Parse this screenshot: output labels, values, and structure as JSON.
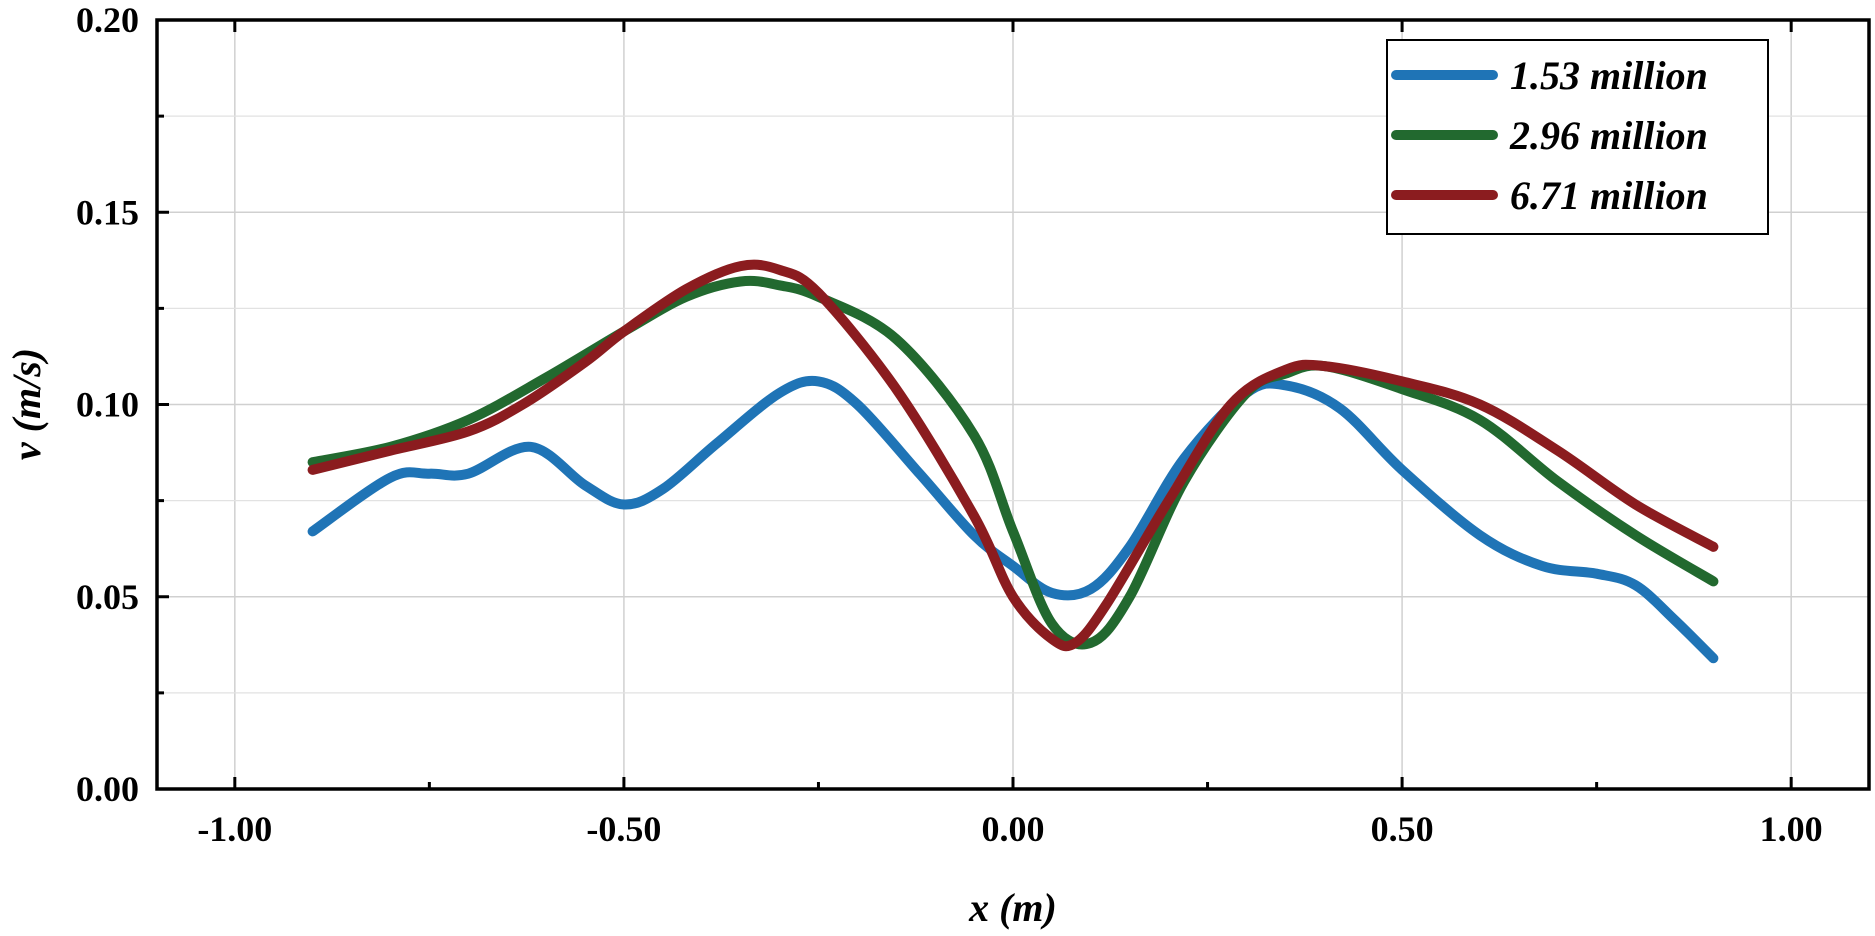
{
  "chart_data": {
    "type": "line",
    "title": "",
    "xlabel": "x (m)",
    "ylabel": "v (m/s)",
    "xlim": [
      -1.1,
      1.1
    ],
    "ylim": [
      0.0,
      0.2
    ],
    "xticks": [
      -1.0,
      -0.5,
      0.0,
      0.5,
      1.0
    ],
    "xtick_labels": [
      "-1.00",
      "-0.50",
      "0.00",
      "0.50",
      "1.00"
    ],
    "yticks": [
      0.0,
      0.05,
      0.1,
      0.15,
      0.2
    ],
    "ytick_labels": [
      "0.00",
      "0.05",
      "0.10",
      "0.15",
      "0.20"
    ],
    "grid": true,
    "legend_position": "top-right",
    "series": [
      {
        "name": "1.53 million",
        "color": "#1f74b6",
        "x": [
          -0.9,
          -0.8,
          -0.75,
          -0.7,
          -0.62,
          -0.55,
          -0.5,
          -0.45,
          -0.38,
          -0.3,
          -0.25,
          -0.2,
          -0.12,
          -0.05,
          0.0,
          0.05,
          0.1,
          0.15,
          0.22,
          0.3,
          0.35,
          0.42,
          0.5,
          0.6,
          0.68,
          0.75,
          0.8,
          0.85,
          0.9
        ],
        "values": [
          0.067,
          0.081,
          0.082,
          0.082,
          0.089,
          0.079,
          0.074,
          0.078,
          0.09,
          0.103,
          0.106,
          0.1,
          0.082,
          0.066,
          0.058,
          0.051,
          0.052,
          0.063,
          0.086,
          0.103,
          0.105,
          0.099,
          0.083,
          0.066,
          0.058,
          0.056,
          0.053,
          0.044,
          0.034
        ]
      },
      {
        "name": "2.96 million",
        "color": "#22692f",
        "x": [
          -0.9,
          -0.8,
          -0.7,
          -0.6,
          -0.5,
          -0.42,
          -0.35,
          -0.3,
          -0.25,
          -0.15,
          -0.05,
          0.0,
          0.05,
          0.1,
          0.15,
          0.22,
          0.3,
          0.35,
          0.4,
          0.5,
          0.6,
          0.7,
          0.8,
          0.9
        ],
        "values": [
          0.085,
          0.089,
          0.096,
          0.107,
          0.119,
          0.128,
          0.132,
          0.131,
          0.128,
          0.117,
          0.092,
          0.067,
          0.043,
          0.038,
          0.05,
          0.08,
          0.103,
          0.108,
          0.11,
          0.104,
          0.096,
          0.08,
          0.066,
          0.054
        ]
      },
      {
        "name": "6.71 million",
        "color": "#8b1c1f",
        "x": [
          -0.9,
          -0.8,
          -0.7,
          -0.63,
          -0.55,
          -0.5,
          -0.42,
          -0.35,
          -0.3,
          -0.25,
          -0.15,
          -0.05,
          0.0,
          0.05,
          0.08,
          0.12,
          0.2,
          0.28,
          0.35,
          0.4,
          0.5,
          0.6,
          0.7,
          0.8,
          0.9
        ],
        "values": [
          0.083,
          0.088,
          0.093,
          0.1,
          0.111,
          0.119,
          0.13,
          0.136,
          0.135,
          0.129,
          0.104,
          0.071,
          0.05,
          0.039,
          0.038,
          0.048,
          0.075,
          0.1,
          0.109,
          0.11,
          0.106,
          0.1,
          0.088,
          0.074,
          0.063
        ]
      }
    ]
  }
}
